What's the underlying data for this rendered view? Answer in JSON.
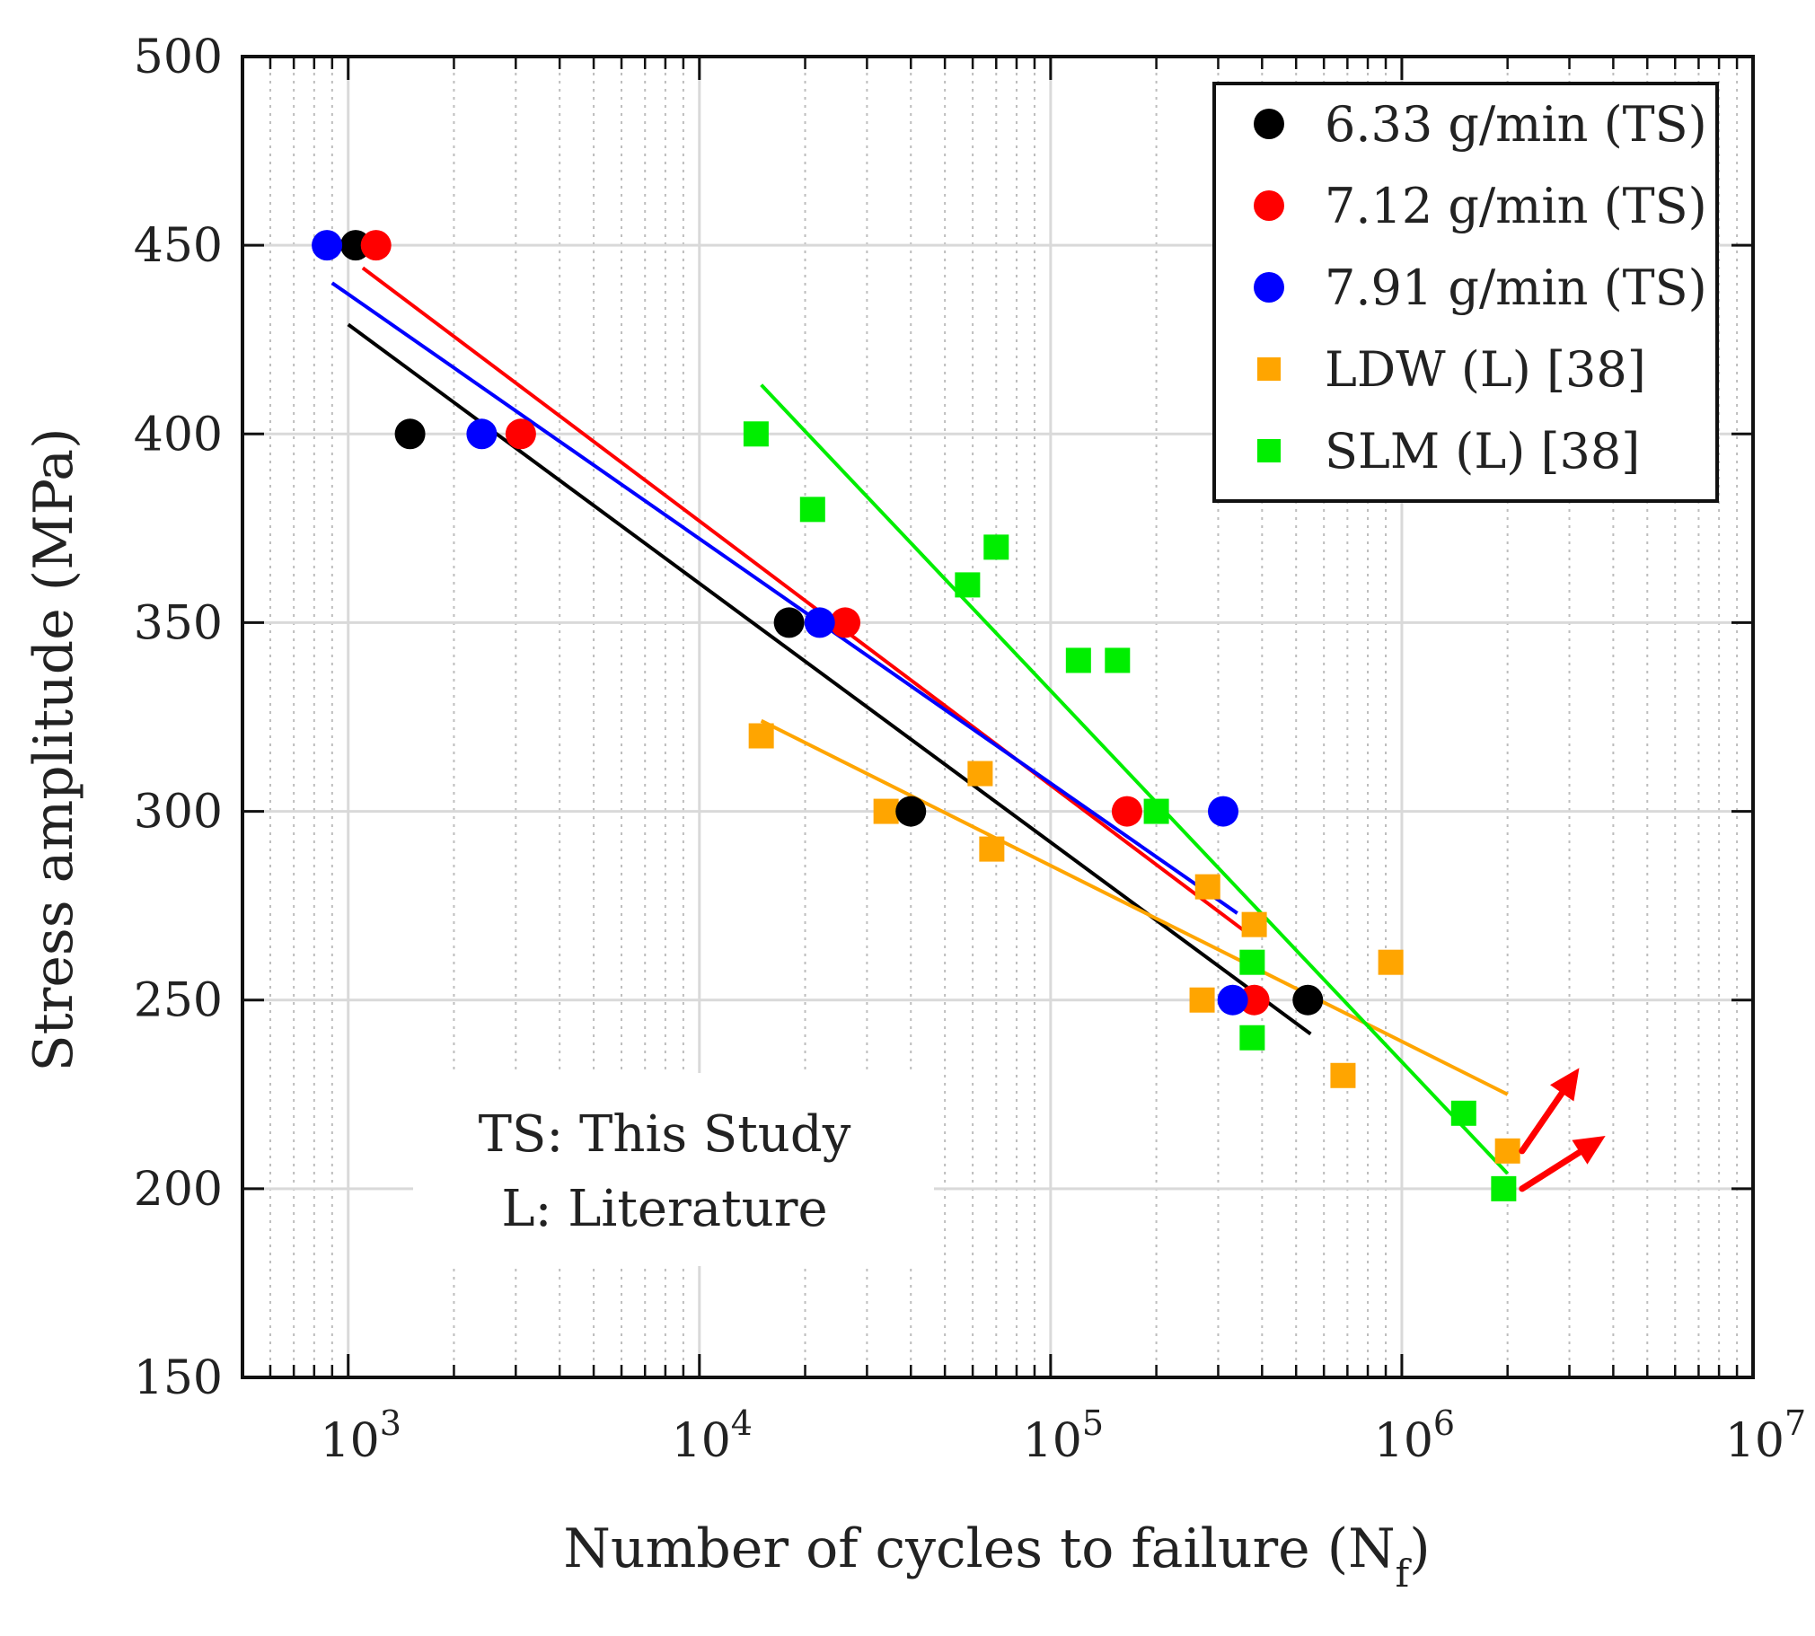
{
  "chart_data": {
    "type": "scatter",
    "xscale": "log",
    "xlim": [
      500,
      10000000
    ],
    "ylim": [
      150,
      500
    ],
    "xlabel": "Number of cycles to failure (N",
    "xlabel_sub": "f",
    "xlabel_close": ")",
    "ylabel": "Stress amplitude (MPa)",
    "x_ticks": [
      {
        "value": 1000,
        "base": "10",
        "exp": "3"
      },
      {
        "value": 10000,
        "base": "10",
        "exp": "4"
      },
      {
        "value": 100000,
        "base": "10",
        "exp": "5"
      },
      {
        "value": 1000000,
        "base": "10",
        "exp": "6"
      },
      {
        "value": 10000000,
        "base": "10",
        "exp": "7"
      }
    ],
    "y_ticks": [
      {
        "value": 150,
        "label": "150"
      },
      {
        "value": 200,
        "label": "200"
      },
      {
        "value": 250,
        "label": "250"
      },
      {
        "value": 300,
        "label": "300"
      },
      {
        "value": 350,
        "label": "350"
      },
      {
        "value": 400,
        "label": "400"
      },
      {
        "value": 450,
        "label": "450"
      },
      {
        "value": 500,
        "label": "500"
      }
    ],
    "grid": true,
    "legend_position": "top-right",
    "series": [
      {
        "name": "6.33 g/min (TS)",
        "marker": "circle",
        "color": "#000000",
        "points": [
          [
            1050,
            450
          ],
          [
            1500,
            400
          ],
          [
            18000,
            350
          ],
          [
            40000,
            300
          ],
          [
            540000,
            250
          ]
        ],
        "fit": [
          [
            1000,
            429
          ],
          [
            550000,
            241
          ]
        ]
      },
      {
        "name": "7.12 g/min (TS)",
        "marker": "circle",
        "color": "#ff0000",
        "points": [
          [
            1200,
            450
          ],
          [
            3100,
            400
          ],
          [
            26000,
            350
          ],
          [
            165000,
            300
          ],
          [
            380000,
            250
          ]
        ],
        "fit": [
          [
            1100,
            444
          ],
          [
            360000,
            268
          ]
        ]
      },
      {
        "name": "7.91 g/min (TS)",
        "marker": "circle",
        "color": "#0000ff",
        "points": [
          [
            870,
            450
          ],
          [
            2400,
            400
          ],
          [
            22000,
            350
          ],
          [
            310000,
            300
          ],
          [
            330000,
            250
          ]
        ],
        "fit": [
          [
            900,
            440
          ],
          [
            340000,
            273
          ]
        ]
      },
      {
        "name": "LDW (L) [38]",
        "marker": "square",
        "color": "#ffa500",
        "points": [
          [
            15000,
            320
          ],
          [
            34000,
            300
          ],
          [
            63000,
            310
          ],
          [
            68000,
            290
          ],
          [
            280000,
            280
          ],
          [
            270000,
            250
          ],
          [
            380000,
            270
          ],
          [
            680000,
            230
          ],
          [
            930000,
            260
          ],
          [
            2000000,
            210
          ]
        ],
        "fit": [
          [
            15000,
            324
          ],
          [
            2000000,
            225
          ]
        ]
      },
      {
        "name": "SLM (L)  [38]",
        "marker": "square",
        "color": "#00ee00",
        "points": [
          [
            14500,
            400
          ],
          [
            21000,
            380
          ],
          [
            58000,
            360
          ],
          [
            70000,
            370
          ],
          [
            120000,
            340
          ],
          [
            155000,
            340
          ],
          [
            200000,
            300
          ],
          [
            375000,
            260
          ],
          [
            375000,
            240
          ],
          [
            1500000,
            220
          ],
          [
            1950000,
            200
          ]
        ],
        "fit": [
          [
            15000,
            413
          ],
          [
            2000000,
            204
          ]
        ]
      }
    ],
    "annotations": {
      "note_line1": "TS: This Study",
      "note_line2": "L: Literature",
      "runout_arrow_color": "#ff0000",
      "runout_arrows": [
        {
          "from": [
            2200000,
            210
          ],
          "to": [
            3200000,
            232
          ]
        },
        {
          "from": [
            2200000,
            200
          ],
          "to": [
            3800000,
            214
          ]
        }
      ]
    }
  }
}
